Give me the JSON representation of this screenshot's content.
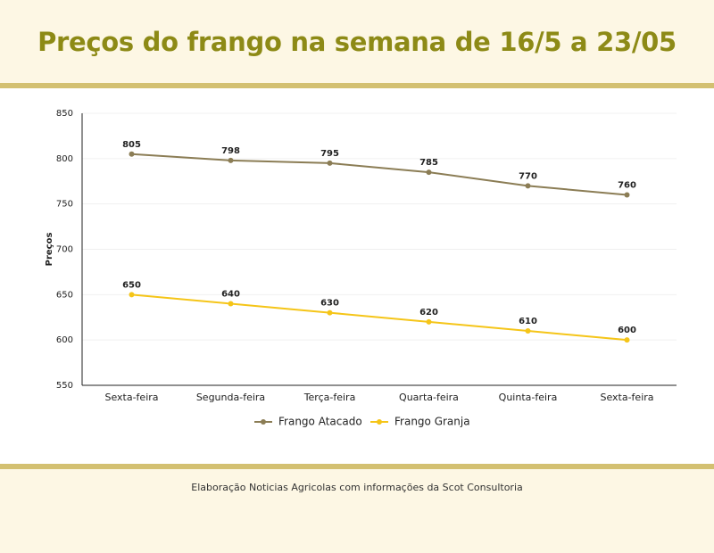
{
  "header": {
    "title": "Preços do frango na semana de 16/5 a 23/05"
  },
  "chart_data": {
    "type": "line",
    "y_label": "Preços",
    "categories": [
      "Sexta-feira",
      "Segunda-feira",
      "Terça-feira",
      "Quarta-feira",
      "Quinta-feira",
      "Sexta-feira"
    ],
    "series": [
      {
        "name": "Frango Atacado",
        "color": "#8b7d55",
        "values": [
          805,
          798,
          795,
          785,
          770,
          760
        ]
      },
      {
        "name": "Frango Granja",
        "color": "#f5c518",
        "values": [
          650,
          640,
          630,
          620,
          610,
          600
        ]
      }
    ],
    "ylim": [
      550,
      850
    ],
    "yticks": [
      550,
      600,
      650,
      700,
      750,
      800,
      850
    ],
    "grid": true,
    "legend": "bottom"
  },
  "footer": {
    "text": "Elaboração Noticias Agricolas com informações da Scot Consultoria"
  }
}
